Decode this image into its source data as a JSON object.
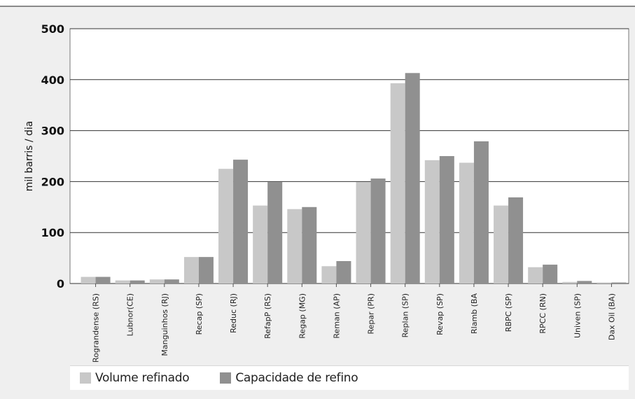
{
  "colors": {
    "series1": "#c8c8c8",
    "series2": "#909090",
    "plot_bg": "#ffffff",
    "panel_bg": "#efefef"
  },
  "chart_data": {
    "type": "bar",
    "title": "",
    "xlabel": "",
    "ylabel": "mil barris / dia",
    "ylim": [
      0,
      500
    ],
    "yticks": [
      0,
      100,
      200,
      300,
      400,
      500
    ],
    "grid": true,
    "legend_position": "bottom",
    "categories": [
      "Rograndense (RS)",
      "Lubnor(CE)",
      "Manguinhos (RJ)",
      "Recap (SP)",
      "Reduc (RJ)",
      "RefapP (RS)",
      "Regap (MG)",
      "Reman (AP)",
      "Repar (PR)",
      "Replan (SP)",
      "Revap (SP)",
      "Rlamb (BA",
      "RBPC (SP)",
      "RPCC (RN)",
      "Univen (SP)",
      "Dax Oil (BA)"
    ],
    "series": [
      {
        "name": "Volume refinado",
        "values": [
          13,
          6,
          8,
          52,
          225,
          153,
          146,
          34,
          199,
          393,
          242,
          237,
          153,
          32,
          3,
          2
        ]
      },
      {
        "name": "Capacidade de refino",
        "values": [
          13,
          6,
          8,
          52,
          243,
          199,
          150,
          44,
          206,
          413,
          250,
          279,
          169,
          37,
          5,
          2
        ]
      }
    ]
  }
}
